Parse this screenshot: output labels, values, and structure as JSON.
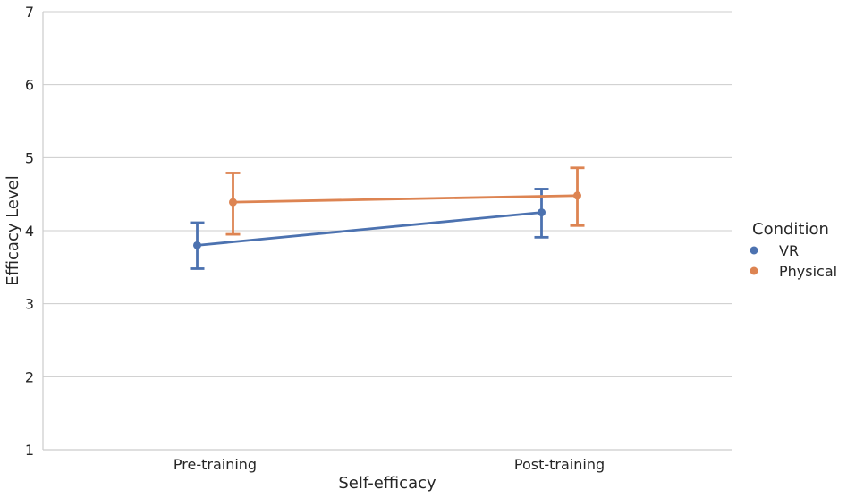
{
  "chart_data": {
    "type": "line",
    "title": "",
    "xlabel": "Self-efficacy",
    "ylabel": "Efficacy Level",
    "categories": [
      "Pre-training",
      "Post-training"
    ],
    "ylim": [
      1,
      7
    ],
    "yticks": [
      1,
      2,
      3,
      4,
      5,
      6,
      7
    ],
    "grid": true,
    "legend": {
      "title": "Condition",
      "placement": "right"
    },
    "series": [
      {
        "name": "VR",
        "color": "#4c72b0",
        "values": [
          3.8,
          4.25
        ],
        "err_low": [
          3.48,
          3.91
        ],
        "err_high": [
          4.11,
          4.57
        ]
      },
      {
        "name": "Physical",
        "color": "#dd8452",
        "values": [
          4.39,
          4.48
        ],
        "err_low": [
          3.95,
          4.07
        ],
        "err_high": [
          4.79,
          4.86
        ]
      }
    ]
  }
}
